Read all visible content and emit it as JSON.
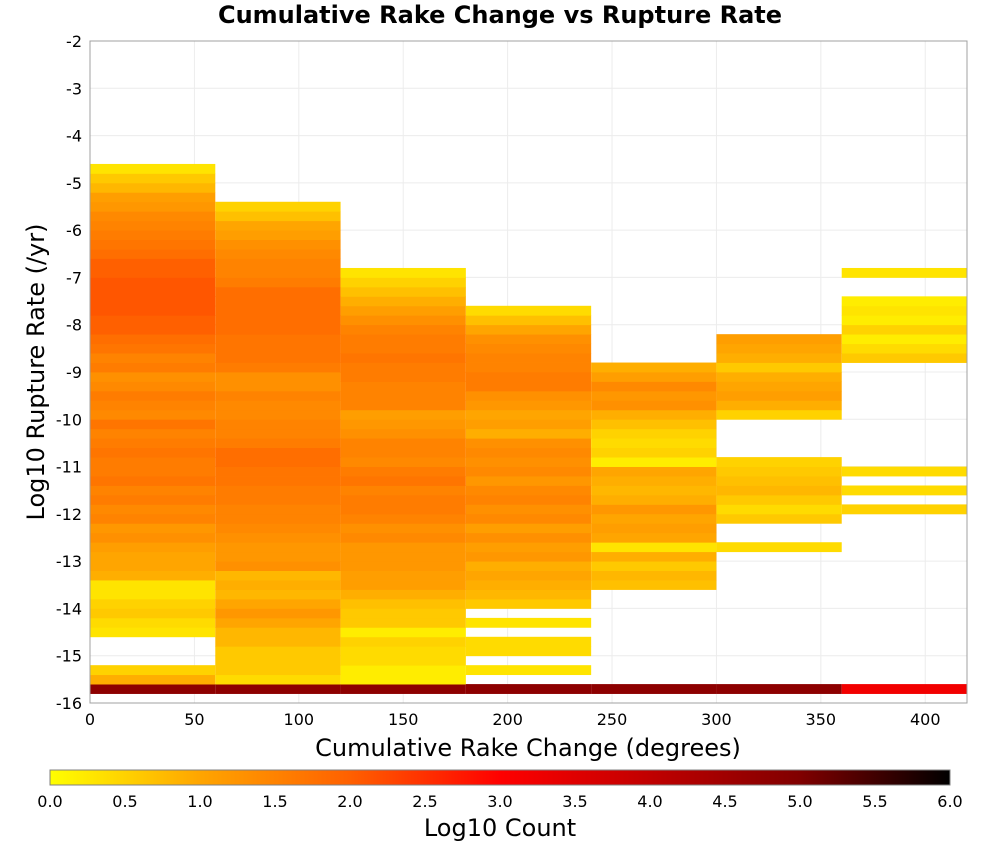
{
  "chart_data": {
    "type": "heatmap",
    "title": "Cumulative Rake Change vs Rupture Rate",
    "xlabel": "Cumulative Rake Change (degrees)",
    "ylabel": "Log10 Rupture Rate (/yr)",
    "colorbar_label": "Log10 Count",
    "xlim": [
      0,
      420
    ],
    "ylim": [
      -16,
      -2
    ],
    "x_ticks": [
      "0",
      "50",
      "100",
      "150",
      "200",
      "250",
      "300",
      "350",
      "400"
    ],
    "y_ticks": [
      "-2",
      "-3",
      "-4",
      "-5",
      "-6",
      "-7",
      "-8",
      "-9",
      "-10",
      "-11",
      "-12",
      "-13",
      "-14",
      "-15",
      "-16"
    ],
    "colorbar_ticks": [
      "0.0",
      "0.5",
      "1.0",
      "1.5",
      "2.0",
      "2.5",
      "3.0",
      "3.5",
      "4.0",
      "4.5",
      "5.0",
      "5.5",
      "6.0"
    ],
    "colorbar_range": [
      0,
      6
    ],
    "grid": true,
    "x_bin_width": 60,
    "y_bin_width": 0.2,
    "colorscale": [
      "#ffff00",
      "#ffa500",
      "#ff6000",
      "#ff0000",
      "#c00000",
      "#800000",
      "#000000"
    ],
    "columns": [
      {
        "x": [
          0,
          60
        ],
        "start_y": -15.8,
        "cells": [
          4.8,
          0.9,
          0.5,
          0,
          0,
          0,
          0.3,
          0.4,
          0.6,
          0.5,
          0.3,
          0.3,
          0.9,
          1.0,
          1.0,
          1.1,
          1.3,
          1.2,
          1.5,
          1.4,
          1.6,
          1.5,
          1.7,
          1.6,
          1.6,
          1.7,
          1.6,
          1.5,
          1.7,
          1.4,
          1.5,
          1.6,
          1.4,
          1.3,
          1.6,
          1.5,
          1.7,
          1.8,
          2.0,
          2.0,
          2.1,
          2.1,
          2.1,
          2.1,
          2.0,
          2.0,
          1.8,
          1.7,
          1.6,
          1.5,
          1.4,
          1.2,
          1.1,
          0.8,
          0.6,
          0.3
        ]
      },
      {
        "x": [
          60,
          120
        ],
        "start_y": -15.8,
        "cells": [
          4.8,
          0.4,
          0.6,
          0.6,
          0.6,
          0.8,
          0.8,
          1.0,
          1.2,
          1.0,
          0.8,
          0.9,
          0.8,
          1.3,
          1.2,
          1.2,
          1.3,
          1.4,
          1.5,
          1.5,
          1.6,
          1.6,
          1.7,
          1.7,
          1.8,
          1.8,
          1.6,
          1.5,
          1.5,
          1.4,
          1.4,
          1.5,
          1.3,
          1.3,
          1.6,
          1.7,
          1.7,
          1.7,
          1.8,
          1.8,
          1.8,
          1.8,
          1.8,
          1.6,
          1.5,
          1.5,
          1.4,
          1.3,
          1.1,
          1.0,
          0.7,
          0.5
        ]
      },
      {
        "x": [
          120,
          180
        ],
        "start_y": -15.8,
        "cells": [
          4.8,
          0.2,
          0.2,
          0.4,
          0.4,
          0.5,
          0.2,
          0.6,
          0.6,
          0.7,
          0.9,
          1.1,
          1.1,
          1.2,
          1.2,
          1.2,
          1.4,
          1.3,
          1.5,
          1.6,
          1.6,
          1.5,
          1.7,
          1.6,
          1.4,
          1.5,
          1.5,
          1.3,
          1.2,
          1.1,
          1.5,
          1.5,
          1.5,
          1.6,
          1.6,
          1.7,
          1.6,
          1.6,
          1.5,
          1.3,
          1.1,
          0.9,
          0.7,
          0.5,
          0.3
        ]
      },
      {
        "x": [
          180,
          240
        ],
        "start_y": -15.8,
        "cells": [
          4.8,
          0,
          0.3,
          0,
          0.4,
          0.4,
          0,
          0.3,
          0,
          0.6,
          0.8,
          0.9,
          1.0,
          0.9,
          1.2,
          1.1,
          1.3,
          1.1,
          1.4,
          1.3,
          1.5,
          1.4,
          1.2,
          1.4,
          1.3,
          1.4,
          1.3,
          0.9,
          1.1,
          1.0,
          1.2,
          1.3,
          1.6,
          1.6,
          1.5,
          1.5,
          1.4,
          1.3,
          1.0,
          0.7,
          0.4
        ]
      },
      {
        "x": [
          240,
          300
        ],
        "start_y": -15.8,
        "cells": [
          4.8,
          0,
          0,
          0,
          0,
          0,
          0,
          0,
          0,
          0,
          0,
          0.7,
          0.8,
          0.6,
          0.9,
          0.3,
          1.0,
          1.1,
          1.0,
          1.2,
          0.9,
          0.8,
          0.9,
          1.0,
          0.2,
          0.5,
          0.4,
          0.5,
          0.7,
          0.9,
          1.3,
          1.2,
          1.4,
          1.1,
          0.9
        ]
      },
      {
        "x": [
          300,
          360
        ],
        "start_y": -15.8,
        "cells": [
          4.8,
          0,
          0,
          0,
          0,
          0,
          0,
          0,
          0,
          0,
          0,
          0,
          0,
          0,
          0,
          0.4,
          0,
          0,
          0.6,
          0.4,
          0.6,
          0.8,
          0.7,
          0.6,
          0.5,
          0,
          0,
          0,
          0,
          0.5,
          0.9,
          1.1,
          1.0,
          0.9,
          0.6,
          0.9,
          1.0,
          1.1
        ]
      },
      {
        "x": [
          360,
          420
        ],
        "start_y": -15.8,
        "cells": [
          3.2,
          0,
          0,
          0,
          0,
          0,
          0,
          0,
          0,
          0,
          0,
          0,
          0,
          0,
          0,
          0,
          0,
          0,
          0,
          0.5,
          0,
          0.4,
          0,
          0.4,
          0,
          0,
          0,
          0,
          0,
          0,
          0,
          0,
          0,
          0,
          0,
          0.6,
          0.4,
          0.2,
          0.5,
          0.2,
          0.3,
          0.2,
          0,
          0,
          0.3
        ]
      }
    ]
  }
}
